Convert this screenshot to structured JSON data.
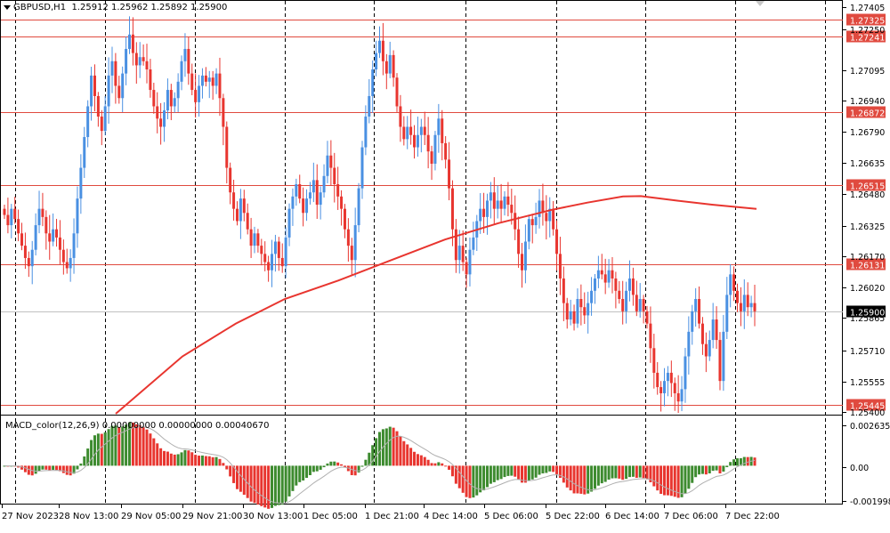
{
  "header": {
    "symbol": "GBPUSD,H1",
    "ohlc": "1.25912 1.25962 1.25892 1.25900"
  },
  "macd_header": "MACD_color(12,26,9) 0.00000000 0.00000000 0.00040670",
  "colors": {
    "bull": "#4a90e2",
    "bear": "#e8352f",
    "level": "#e04a3f",
    "ma": "#e8352f",
    "macd_up": "#3d8b2f",
    "macd_down": "#e8352f",
    "signal": "#b0b0b0",
    "grid": "#000000"
  },
  "chart_data": [
    {
      "type": "candlestick",
      "title": "GBPUSD,H1",
      "ylim": [
        1.254,
        1.2741
      ],
      "y_ticks": [
        "1.27405",
        "1.27250",
        "1.27095",
        "1.26940",
        "1.26790",
        "1.26635",
        "1.26480",
        "1.26325",
        "1.26170",
        "1.26020",
        "1.25865",
        "1.25710",
        "1.25555",
        "1.25400"
      ],
      "x_ticks": [
        "27 Nov 2023",
        "28 Nov 13:00",
        "29 Nov 05:00",
        "29 Nov 21:00",
        "30 Nov 13:00",
        "1 Dec 05:00",
        "1 Dec 21:00",
        "4 Dec 14:00",
        "5 Dec 06:00",
        "5 Dec 22:00",
        "6 Dec 14:00",
        "7 Dec 06:00",
        "7 Dec 22:00"
      ],
      "levels": [
        {
          "label": "1.27325",
          "value": 1.27325
        },
        {
          "label": "1.27241",
          "value": 1.27241
        },
        {
          "label": "1.26872",
          "value": 1.26872
        },
        {
          "label": "1.26515",
          "value": 1.26515
        },
        {
          "label": "1.26131",
          "value": 1.26131
        },
        {
          "label": "1.25445",
          "value": 1.25445
        }
      ],
      "current_price": {
        "label": "1.25900",
        "value": 1.259
      },
      "close_series": [
        1.2637,
        1.2632,
        1.264,
        1.2635,
        1.2628,
        1.2622,
        1.2616,
        1.2612,
        1.262,
        1.2632,
        1.264,
        1.2636,
        1.2628,
        1.2624,
        1.263,
        1.2626,
        1.262,
        1.2614,
        1.2611,
        1.2616,
        1.2628,
        1.2645,
        1.266,
        1.2675,
        1.269,
        1.2705,
        1.2695,
        1.2685,
        1.2678,
        1.269,
        1.2705,
        1.2712,
        1.27,
        1.2694,
        1.2706,
        1.2718,
        1.2725,
        1.2716,
        1.271,
        1.2714,
        1.2712,
        1.2708,
        1.2698,
        1.269,
        1.2684,
        1.268,
        1.2688,
        1.2698,
        1.269,
        1.2694,
        1.2702,
        1.2712,
        1.2718,
        1.2706,
        1.2698,
        1.2692,
        1.27,
        1.2705,
        1.2702,
        1.2704,
        1.27,
        1.2706,
        1.2694,
        1.268,
        1.266,
        1.2648,
        1.264,
        1.2634,
        1.2645,
        1.2638,
        1.263,
        1.2622,
        1.2628,
        1.2622,
        1.2618,
        1.2614,
        1.261,
        1.2618,
        1.2624,
        1.2616,
        1.2612,
        1.2626,
        1.264,
        1.2646,
        1.2652,
        1.2645,
        1.2638,
        1.2645,
        1.2648,
        1.2654,
        1.2642,
        1.2648,
        1.2656,
        1.2666,
        1.266,
        1.2652,
        1.2646,
        1.264,
        1.263,
        1.2622,
        1.2615,
        1.2632,
        1.265,
        1.267,
        1.2685,
        1.2695,
        1.2708,
        1.2716,
        1.2722,
        1.2712,
        1.2706,
        1.2715,
        1.2704,
        1.269,
        1.268,
        1.2674,
        1.268,
        1.2676,
        1.267,
        1.2676,
        1.268,
        1.2676,
        1.2668,
        1.2662,
        1.2676,
        1.2684,
        1.2672,
        1.2664,
        1.265,
        1.263,
        1.2615,
        1.2622,
        1.2614,
        1.2608,
        1.262,
        1.2626,
        1.2634,
        1.264,
        1.2636,
        1.2644,
        1.2648,
        1.264,
        1.2644,
        1.264,
        1.2646,
        1.2642,
        1.2638,
        1.263,
        1.2618,
        1.261,
        1.2624,
        1.2635,
        1.2632,
        1.2636,
        1.2644,
        1.2638,
        1.2634,
        1.264,
        1.263,
        1.2618,
        1.2606,
        1.2594,
        1.2586,
        1.259,
        1.2584,
        1.2596,
        1.2592,
        1.2588,
        1.2594,
        1.26,
        1.2606,
        1.261,
        1.2608,
        1.2604,
        1.261,
        1.2606,
        1.26,
        1.2596,
        1.259,
        1.26,
        1.2606,
        1.2598,
        1.259,
        1.2596,
        1.259,
        1.2584,
        1.2572,
        1.256,
        1.2553,
        1.255,
        1.2556,
        1.256,
        1.2555,
        1.255,
        1.2546,
        1.2552,
        1.2568,
        1.258,
        1.259,
        1.2596,
        1.2584,
        1.2574,
        1.2568,
        1.2576,
        1.2586,
        1.2576,
        1.2556,
        1.258,
        1.2598,
        1.2608,
        1.26,
        1.2594,
        1.259,
        1.2598,
        1.2592,
        1.2594,
        1.259
      ],
      "moving_average": {
        "x_index": [
          130,
          205,
          265,
          320,
          380,
          440,
          500,
          560,
          620,
          660,
          700,
          720,
          760,
          800,
          850
        ],
        "y": [
          1.254,
          1.2568,
          1.2584,
          1.2596,
          1.2605,
          1.2615,
          1.2625,
          1.2633,
          1.26395,
          1.2643,
          1.2646,
          1.26462,
          1.2644,
          1.2642,
          1.264
        ]
      }
    },
    {
      "type": "bar",
      "title": "MACD_color(12,26,9) 0.00000000 0.00000000 0.00040670",
      "ylim": [
        -0.002,
        0.0026
      ],
      "y_ticks": [
        "0.0026353",
        "0.00",
        "-0.0019985"
      ]
    }
  ]
}
